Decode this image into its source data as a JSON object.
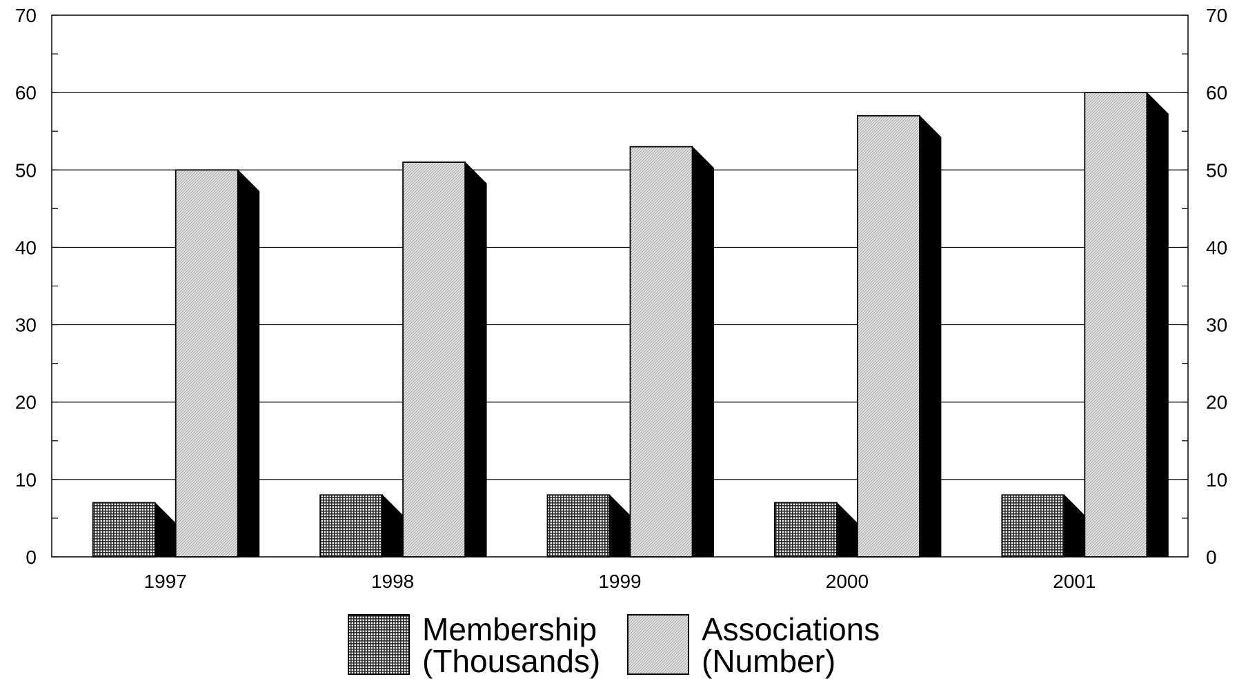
{
  "chart_data": {
    "type": "bar",
    "categories": [
      "1997",
      "1998",
      "1999",
      "2000",
      "2001"
    ],
    "series": [
      {
        "name": "Membership (Thousands)",
        "name_lines": [
          "Membership",
          "(Thousands)"
        ],
        "values": [
          7,
          8,
          8,
          7,
          8
        ],
        "pattern": "crosshatch"
      },
      {
        "name": "Associations (Number)",
        "name_lines": [
          "Associations",
          "(Number)"
        ],
        "values": [
          50,
          51,
          53,
          57,
          60
        ],
        "pattern": "diagonal-light"
      }
    ],
    "title": "",
    "xlabel": "",
    "ylabel": "",
    "ylim": [
      0,
      70
    ],
    "y_ticks": [
      0,
      10,
      20,
      30,
      40,
      50,
      60,
      70
    ],
    "secondary_y_ticks": [
      0,
      10,
      20,
      30,
      40,
      50,
      60,
      70
    ],
    "grid": true,
    "bar_style": "3d-shadow",
    "legend_position": "bottom-center",
    "colors": {
      "bar_outline": "#000000",
      "shadow": "#000000",
      "background": "#ffffff",
      "grid": "#000000"
    }
  }
}
